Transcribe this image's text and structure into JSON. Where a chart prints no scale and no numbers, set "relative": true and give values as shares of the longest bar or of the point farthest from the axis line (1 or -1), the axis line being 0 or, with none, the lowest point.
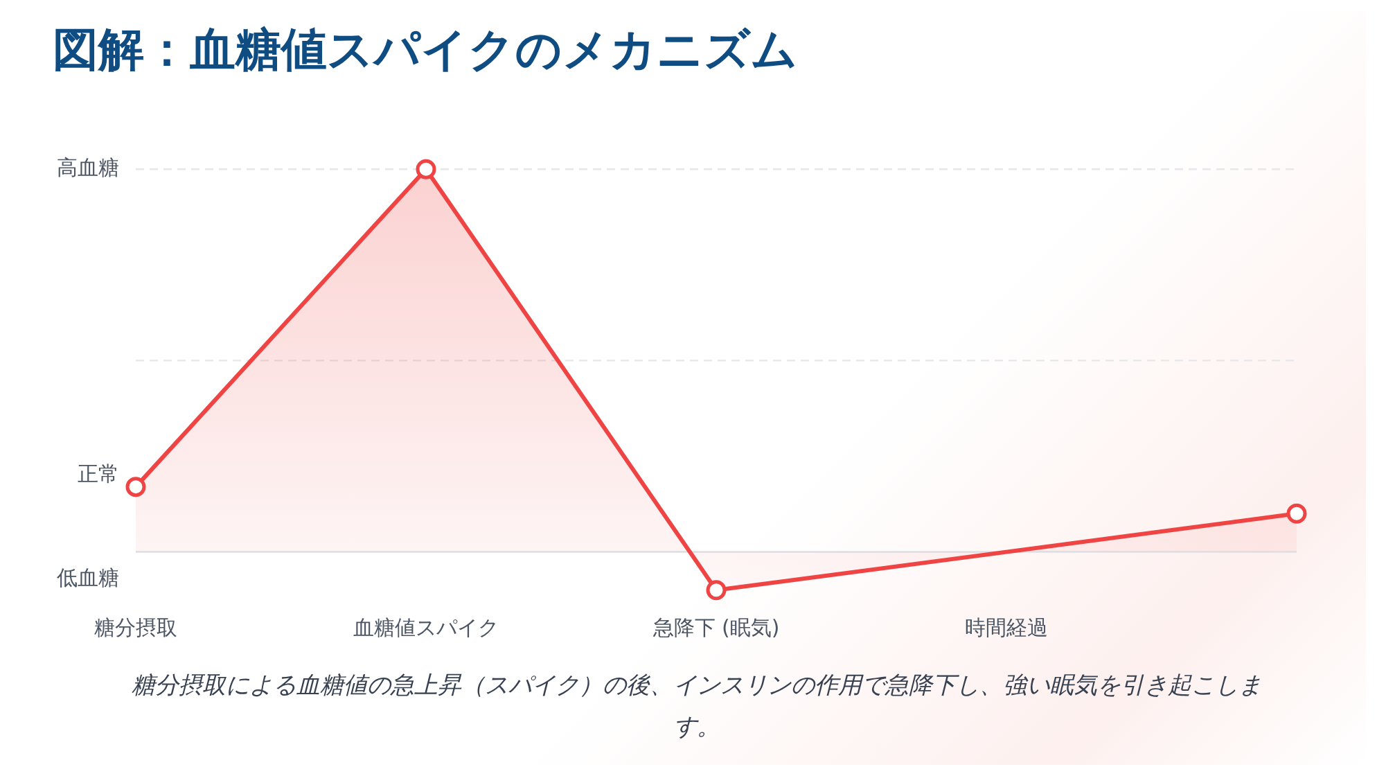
{
  "chart_data": {
    "type": "area",
    "title": "図解：血糖値スパイクのメカニズム",
    "categories": [
      "糖分摂取",
      "血糖値スパイク",
      "急降下 (眠気)",
      "時間経過",
      null
    ],
    "series": [
      {
        "color": "#ef4444",
        "values": [
          0.17,
          1,
          -0.1,
          null,
          0.1
        ]
      }
    ],
    "relative": true,
    "legend": false,
    "marker": "circle",
    "line_style": "solid",
    "ref_lines": [
      {
        "axis": "y",
        "value": 1,
        "label": "高血糖",
        "color": "#e5e7eb",
        "line_style": "dashed"
      },
      {
        "axis": "y",
        "value": 0.5,
        "color": "#e5e7eb",
        "line_style": "dashed"
      },
      {
        "axis": "y",
        "value": 0,
        "color": "#dbe2ea",
        "line_style": "solid"
      }
    ],
    "annotations": [
      "正常",
      "低血糖",
      "糖分摂取による血糖値の急上昇（スパイク）の後、インスリンの作用で急降下し、強い眠気を引き起こします。"
    ]
  }
}
